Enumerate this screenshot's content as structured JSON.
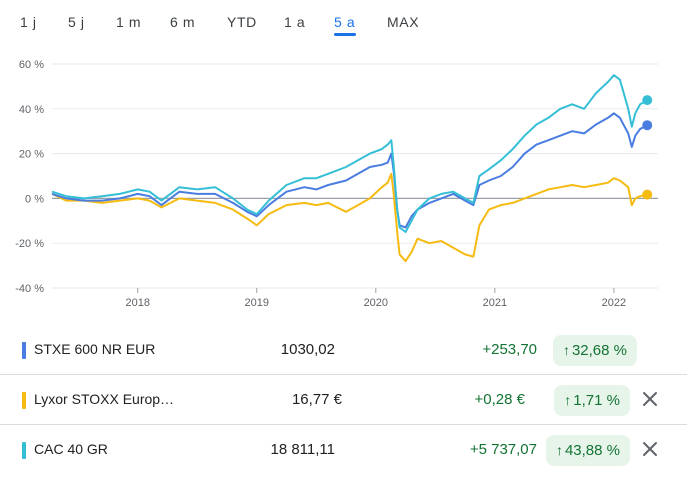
{
  "tabs": [
    "1 j",
    "5 j",
    "1 m",
    "6 m",
    "YTD",
    "1 a",
    "5 a",
    "MAX"
  ],
  "active_tab": "5 a",
  "colors": {
    "stxe": "#4a7de0",
    "lyxor": "#f5bb11",
    "cac": "#35bfd6",
    "zero": "#9aa0a6",
    "grid": "#e8eaed",
    "up": "#137333",
    "up_bg": "#e6f4ea",
    "accent": "#1a73e8"
  },
  "chart_data": {
    "type": "line",
    "x_ticks": [
      "2018",
      "2019",
      "2020",
      "2021",
      "2022"
    ],
    "y_ticks": [
      "60 %",
      "40 %",
      "20 %",
      "0 %",
      "-20 %",
      "-40 %"
    ],
    "ylim": [
      -40,
      60
    ],
    "xlim": [
      2017.28,
      2022.32
    ],
    "series": [
      {
        "name": "STXE 600 NR EUR",
        "color": "#4a7de0",
        "points": [
          [
            2017.28,
            2
          ],
          [
            2017.4,
            0
          ],
          [
            2017.55,
            -1
          ],
          [
            2017.7,
            -1
          ],
          [
            2017.85,
            0
          ],
          [
            2018.0,
            2
          ],
          [
            2018.1,
            1
          ],
          [
            2018.2,
            -3
          ],
          [
            2018.35,
            3
          ],
          [
            2018.5,
            2
          ],
          [
            2018.65,
            2
          ],
          [
            2018.8,
            -2
          ],
          [
            2018.92,
            -6
          ],
          [
            2019.0,
            -8
          ],
          [
            2019.1,
            -3
          ],
          [
            2019.25,
            3
          ],
          [
            2019.4,
            5
          ],
          [
            2019.5,
            4
          ],
          [
            2019.6,
            6
          ],
          [
            2019.75,
            8
          ],
          [
            2019.85,
            11
          ],
          [
            2019.95,
            14
          ],
          [
            2020.05,
            15
          ],
          [
            2020.1,
            16
          ],
          [
            2020.13,
            20
          ],
          [
            2020.15,
            12
          ],
          [
            2020.18,
            -5
          ],
          [
            2020.2,
            -12
          ],
          [
            2020.25,
            -13
          ],
          [
            2020.3,
            -8
          ],
          [
            2020.35,
            -5
          ],
          [
            2020.45,
            -2
          ],
          [
            2020.55,
            0
          ],
          [
            2020.65,
            2
          ],
          [
            2020.75,
            -1
          ],
          [
            2020.82,
            -3
          ],
          [
            2020.87,
            6
          ],
          [
            2020.95,
            8
          ],
          [
            2021.05,
            10
          ],
          [
            2021.15,
            14
          ],
          [
            2021.25,
            20
          ],
          [
            2021.35,
            24
          ],
          [
            2021.45,
            26
          ],
          [
            2021.55,
            28
          ],
          [
            2021.65,
            30
          ],
          [
            2021.75,
            29
          ],
          [
            2021.85,
            33
          ],
          [
            2021.95,
            36
          ],
          [
            2022.0,
            38
          ],
          [
            2022.05,
            36
          ],
          [
            2022.12,
            29
          ],
          [
            2022.15,
            23
          ],
          [
            2022.18,
            28
          ],
          [
            2022.22,
            31
          ],
          [
            2022.28,
            32.68
          ]
        ]
      },
      {
        "name": "Lyxor STOXX Europ…",
        "color": "#f5bb11",
        "points": [
          [
            2017.28,
            2
          ],
          [
            2017.4,
            -1
          ],
          [
            2017.55,
            -1
          ],
          [
            2017.7,
            -2
          ],
          [
            2017.85,
            -1
          ],
          [
            2018.0,
            0
          ],
          [
            2018.1,
            -1
          ],
          [
            2018.2,
            -4
          ],
          [
            2018.35,
            0
          ],
          [
            2018.5,
            -1
          ],
          [
            2018.65,
            -2
          ],
          [
            2018.8,
            -5
          ],
          [
            2018.92,
            -9
          ],
          [
            2019.0,
            -12
          ],
          [
            2019.1,
            -7
          ],
          [
            2019.25,
            -3
          ],
          [
            2019.4,
            -2
          ],
          [
            2019.5,
            -3
          ],
          [
            2019.6,
            -2
          ],
          [
            2019.75,
            -6
          ],
          [
            2019.85,
            -3
          ],
          [
            2019.95,
            0
          ],
          [
            2020.05,
            5
          ],
          [
            2020.1,
            7
          ],
          [
            2020.13,
            11
          ],
          [
            2020.15,
            2
          ],
          [
            2020.18,
            -15
          ],
          [
            2020.2,
            -25
          ],
          [
            2020.25,
            -28
          ],
          [
            2020.3,
            -24
          ],
          [
            2020.35,
            -18
          ],
          [
            2020.45,
            -20
          ],
          [
            2020.55,
            -19
          ],
          [
            2020.65,
            -22
          ],
          [
            2020.75,
            -25
          ],
          [
            2020.82,
            -26
          ],
          [
            2020.87,
            -12
          ],
          [
            2020.95,
            -5
          ],
          [
            2021.05,
            -3
          ],
          [
            2021.15,
            -2
          ],
          [
            2021.25,
            0
          ],
          [
            2021.35,
            2
          ],
          [
            2021.45,
            4
          ],
          [
            2021.55,
            5
          ],
          [
            2021.65,
            6
          ],
          [
            2021.75,
            5
          ],
          [
            2021.85,
            6
          ],
          [
            2021.95,
            7
          ],
          [
            2022.0,
            9
          ],
          [
            2022.05,
            8
          ],
          [
            2022.12,
            5
          ],
          [
            2022.15,
            -3
          ],
          [
            2022.18,
            0
          ],
          [
            2022.22,
            1
          ],
          [
            2022.28,
            1.71
          ]
        ]
      },
      {
        "name": "CAC 40 GR",
        "color": "#35bfd6",
        "points": [
          [
            2017.28,
            3
          ],
          [
            2017.4,
            1
          ],
          [
            2017.55,
            0
          ],
          [
            2017.7,
            1
          ],
          [
            2017.85,
            2
          ],
          [
            2018.0,
            4
          ],
          [
            2018.1,
            3
          ],
          [
            2018.2,
            -1
          ],
          [
            2018.35,
            5
          ],
          [
            2018.5,
            4
          ],
          [
            2018.65,
            5
          ],
          [
            2018.8,
            0
          ],
          [
            2018.92,
            -5
          ],
          [
            2019.0,
            -7
          ],
          [
            2019.1,
            -1
          ],
          [
            2019.25,
            6
          ],
          [
            2019.4,
            9
          ],
          [
            2019.5,
            9
          ],
          [
            2019.6,
            11
          ],
          [
            2019.75,
            14
          ],
          [
            2019.85,
            17
          ],
          [
            2019.95,
            20
          ],
          [
            2020.05,
            22
          ],
          [
            2020.1,
            24
          ],
          [
            2020.13,
            26
          ],
          [
            2020.15,
            15
          ],
          [
            2020.18,
            -5
          ],
          [
            2020.2,
            -13
          ],
          [
            2020.25,
            -15
          ],
          [
            2020.3,
            -10
          ],
          [
            2020.35,
            -5
          ],
          [
            2020.45,
            0
          ],
          [
            2020.55,
            2
          ],
          [
            2020.65,
            3
          ],
          [
            2020.75,
            0
          ],
          [
            2020.82,
            -2
          ],
          [
            2020.87,
            10
          ],
          [
            2020.95,
            13
          ],
          [
            2021.05,
            17
          ],
          [
            2021.15,
            22
          ],
          [
            2021.25,
            28
          ],
          [
            2021.35,
            33
          ],
          [
            2021.45,
            36
          ],
          [
            2021.55,
            40
          ],
          [
            2021.65,
            42
          ],
          [
            2021.75,
            40
          ],
          [
            2021.85,
            47
          ],
          [
            2021.95,
            52
          ],
          [
            2022.0,
            55
          ],
          [
            2022.05,
            53
          ],
          [
            2022.12,
            40
          ],
          [
            2022.15,
            32
          ],
          [
            2022.18,
            38
          ],
          [
            2022.22,
            42
          ],
          [
            2022.28,
            43.88
          ]
        ]
      }
    ]
  },
  "rows": [
    {
      "name": "STXE 600 NR EUR",
      "price": "1030,02",
      "change": "+253,70",
      "pct": "32,68 %",
      "removable": false
    },
    {
      "name": "Lyxor STOXX Europ…",
      "price": "16,77 €",
      "change": "+0,28 €",
      "pct": "1,71 %",
      "removable": true
    },
    {
      "name": "CAC 40 GR",
      "price": "18 811,11",
      "change": "+5 737,07",
      "pct": "43,88 %",
      "removable": true
    }
  ]
}
